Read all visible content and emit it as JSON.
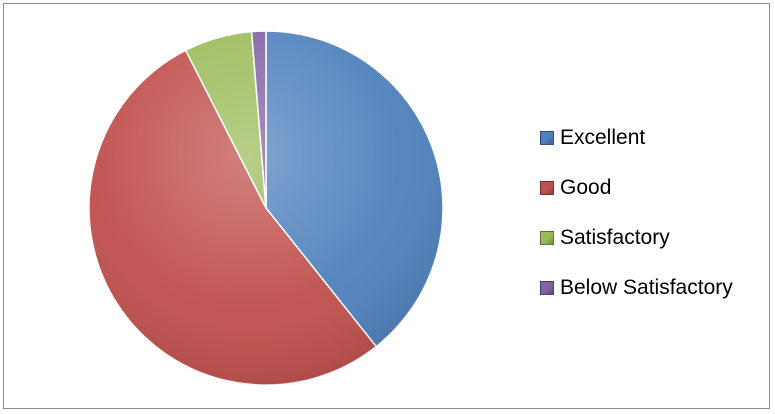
{
  "chart_data": {
    "type": "pie",
    "categories": [
      "Excellent",
      "Good",
      "Satisfactory",
      "Below Satisfactory"
    ],
    "values": [
      39.3,
      53.2,
      6.2,
      1.3
    ],
    "colors": [
      "#4f81bd",
      "#c0504d",
      "#9bbb59",
      "#8064a2"
    ],
    "legend_position": "right",
    "start_angle": "top",
    "direction": "clockwise"
  }
}
